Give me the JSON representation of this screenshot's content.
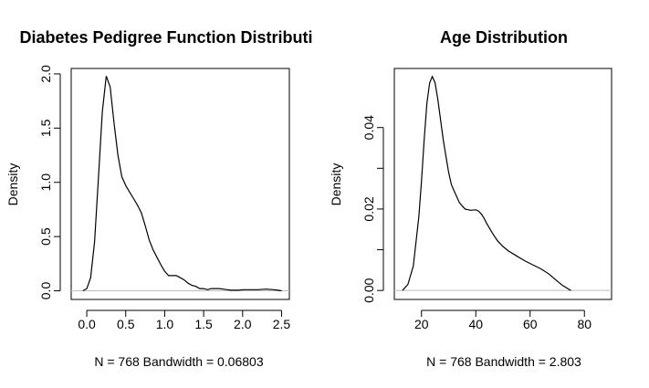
{
  "chart_data": [
    {
      "type": "line",
      "title": "Diabetes Pedigree Function Distributi",
      "ylabel": "Density",
      "xlabel": "N = 768   Bandwidth = 0.06803",
      "xlim": [
        -0.2,
        2.6
      ],
      "ylim": [
        -0.08,
        2.05
      ],
      "x_ticks": [
        0.0,
        0.5,
        1.0,
        1.5,
        2.0,
        2.5
      ],
      "x_tick_labels": [
        "0.0",
        "0.5",
        "1.0",
        "1.5",
        "2.0",
        "2.5"
      ],
      "y_ticks": [
        0.0,
        0.5,
        1.0,
        1.5,
        2.0
      ],
      "y_tick_labels": [
        "0.0",
        "0.5",
        "1.0",
        "1.5",
        "2.0"
      ],
      "grid": false,
      "zero_line": true,
      "series": [
        {
          "x": [
            -0.05,
            0.0,
            0.05,
            0.1,
            0.15,
            0.2,
            0.25,
            0.3,
            0.35,
            0.4,
            0.45,
            0.5,
            0.55,
            0.6,
            0.65,
            0.7,
            0.75,
            0.8,
            0.85,
            0.9,
            0.95,
            1.0,
            1.05,
            1.1,
            1.15,
            1.2,
            1.25,
            1.3,
            1.35,
            1.4,
            1.45,
            1.5,
            1.55,
            1.6,
            1.65,
            1.7,
            1.75,
            1.8,
            1.85,
            1.9,
            1.95,
            2.0,
            2.1,
            2.2,
            2.3,
            2.4,
            2.45,
            2.5
          ],
          "y": [
            0.0,
            0.02,
            0.12,
            0.45,
            1.05,
            1.65,
            1.98,
            1.88,
            1.55,
            1.25,
            1.05,
            0.97,
            0.91,
            0.85,
            0.79,
            0.72,
            0.6,
            0.47,
            0.38,
            0.31,
            0.24,
            0.18,
            0.14,
            0.14,
            0.14,
            0.12,
            0.1,
            0.07,
            0.05,
            0.04,
            0.02,
            0.02,
            0.01,
            0.02,
            0.02,
            0.02,
            0.015,
            0.01,
            0.005,
            0.005,
            0.005,
            0.01,
            0.01,
            0.01,
            0.015,
            0.01,
            0.005,
            0.0
          ]
        }
      ]
    },
    {
      "type": "line",
      "title": "Age Distribution",
      "ylabel": "Density",
      "xlabel": "N = 768   Bandwidth = 2.803",
      "xlim": [
        10,
        90
      ],
      "ylim": [
        -0.0022,
        0.0545
      ],
      "x_ticks": [
        20,
        40,
        60,
        80
      ],
      "x_tick_labels": [
        "20",
        "40",
        "60",
        "80"
      ],
      "y_ticks": [
        0.0,
        0.01,
        0.02,
        0.03,
        0.04
      ],
      "y_tick_labels": [
        "0.00",
        "0.02",
        "0.04"
      ],
      "y_labeled_ticks": [
        0.0,
        0.02,
        0.04
      ],
      "grid": false,
      "zero_line": true,
      "series": [
        {
          "x": [
            13,
            15,
            17,
            19,
            20,
            21,
            22,
            23,
            24,
            25,
            26,
            27,
            28,
            29,
            30,
            31,
            32,
            34,
            36,
            38,
            40,
            41,
            42,
            43,
            44,
            46,
            48,
            50,
            52,
            55,
            58,
            61,
            64,
            67,
            70,
            72,
            74,
            75
          ],
          "y": [
            0.0,
            0.0015,
            0.006,
            0.018,
            0.027,
            0.037,
            0.046,
            0.051,
            0.0525,
            0.051,
            0.047,
            0.042,
            0.037,
            0.033,
            0.029,
            0.026,
            0.0245,
            0.0215,
            0.02,
            0.0197,
            0.0198,
            0.0195,
            0.0188,
            0.0178,
            0.0165,
            0.0142,
            0.0122,
            0.0108,
            0.0097,
            0.0085,
            0.0073,
            0.0063,
            0.0053,
            0.004,
            0.0023,
            0.0012,
            0.0004,
            0.0
          ]
        }
      ]
    }
  ]
}
